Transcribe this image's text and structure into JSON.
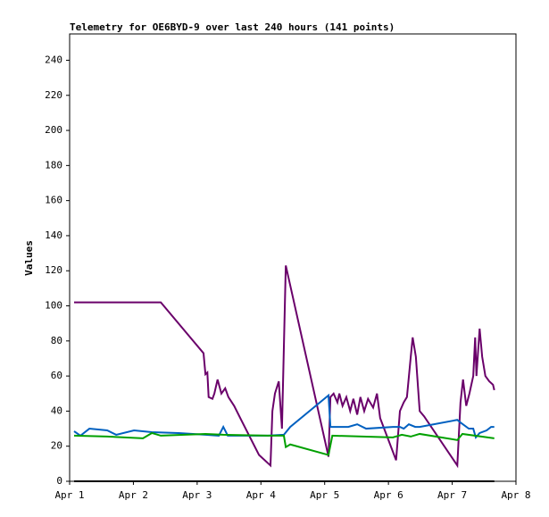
{
  "chart_data": {
    "type": "line",
    "title": "Telemetry for OE6BYD-9 over last 240 hours (141 points)",
    "ylabel": "Values",
    "xlim": [
      1,
      8
    ],
    "xticks": [
      {
        "value": 1,
        "label": "Apr 1"
      },
      {
        "value": 2,
        "label": "Apr 2"
      },
      {
        "value": 3,
        "label": "Apr 3"
      },
      {
        "value": 4,
        "label": "Apr 4"
      },
      {
        "value": 5,
        "label": "Apr 5"
      },
      {
        "value": 6,
        "label": "Apr 6"
      },
      {
        "value": 7,
        "label": "Apr 7"
      },
      {
        "value": 8,
        "label": "Apr 8"
      }
    ],
    "ylim": [
      0,
      255
    ],
    "yticks": [
      0,
      20,
      40,
      60,
      80,
      100,
      120,
      140,
      160,
      180,
      200,
      220,
      240
    ],
    "series": [
      {
        "color": "#6a006a",
        "x": [
          1.07,
          2.43,
          3.1,
          3.13,
          3.16,
          3.18,
          3.24,
          3.27,
          3.32,
          3.38,
          3.44,
          3.49,
          3.58,
          3.69,
          3.83,
          3.97,
          4.15,
          4.18,
          4.22,
          4.28,
          4.33,
          4.39,
          5.06,
          5.09,
          5.14,
          5.2,
          5.23,
          5.28,
          5.34,
          5.4,
          5.45,
          5.51,
          5.56,
          5.62,
          5.68,
          5.76,
          5.82,
          5.87,
          6.12,
          6.18,
          6.24,
          6.29,
          6.35,
          6.38,
          6.43,
          6.49,
          6.56,
          7.08,
          7.13,
          7.17,
          7.22,
          7.27,
          7.33,
          7.36,
          7.38,
          7.43,
          7.47,
          7.52,
          7.58,
          7.64,
          7.66
        ],
        "values": [
          102,
          102,
          73,
          61,
          62,
          48,
          47,
          50,
          58,
          50,
          53,
          48,
          43,
          35,
          25,
          15,
          9,
          40,
          50,
          57,
          30,
          123,
          14,
          48,
          50,
          45,
          50,
          43,
          48,
          40,
          47,
          38,
          48,
          40,
          47,
          42,
          50,
          36,
          12,
          40,
          45,
          48,
          71,
          82,
          71,
          40,
          37,
          9,
          45,
          58,
          43,
          50,
          60,
          82,
          60,
          87,
          71,
          60,
          57,
          55,
          52
        ]
      },
      {
        "color": "#0060c0",
        "x": [
          1.07,
          1.17,
          1.31,
          1.59,
          1.73,
          2.01,
          2.29,
          2.71,
          3.13,
          3.34,
          3.41,
          3.48,
          4.11,
          4.36,
          4.46,
          5.06,
          5.09,
          5.37,
          5.51,
          5.65,
          6.07,
          6.18,
          6.24,
          6.32,
          6.42,
          6.49,
          7.08,
          7.13,
          7.26,
          7.33,
          7.37,
          7.43,
          7.54,
          7.61,
          7.66
        ],
        "values": [
          28.5,
          26,
          30,
          29,
          26.5,
          29,
          28,
          27.5,
          26.5,
          26,
          31,
          26,
          26,
          26.5,
          31,
          49,
          31,
          31,
          32.5,
          30,
          31,
          31,
          30,
          32.5,
          31,
          31,
          35,
          33.5,
          30,
          30,
          25,
          27.5,
          29,
          31,
          31
        ]
      },
      {
        "color": "#00a000",
        "x": [
          1.07,
          1.59,
          2.15,
          2.29,
          2.43,
          3.13,
          3.41,
          4.11,
          4.36,
          4.39,
          4.46,
          5.06,
          5.12,
          6.07,
          6.21,
          6.35,
          6.49,
          7.08,
          7.16,
          7.66
        ],
        "values": [
          26,
          25.5,
          24.5,
          27.5,
          26,
          27,
          26.5,
          26,
          26,
          19.5,
          21,
          15,
          26,
          25,
          26.5,
          25.5,
          27,
          23.5,
          27,
          24.5
        ]
      },
      {
        "color": "#000000",
        "x": [
          1.07,
          7.66
        ],
        "values": [
          0,
          0
        ]
      }
    ]
  }
}
